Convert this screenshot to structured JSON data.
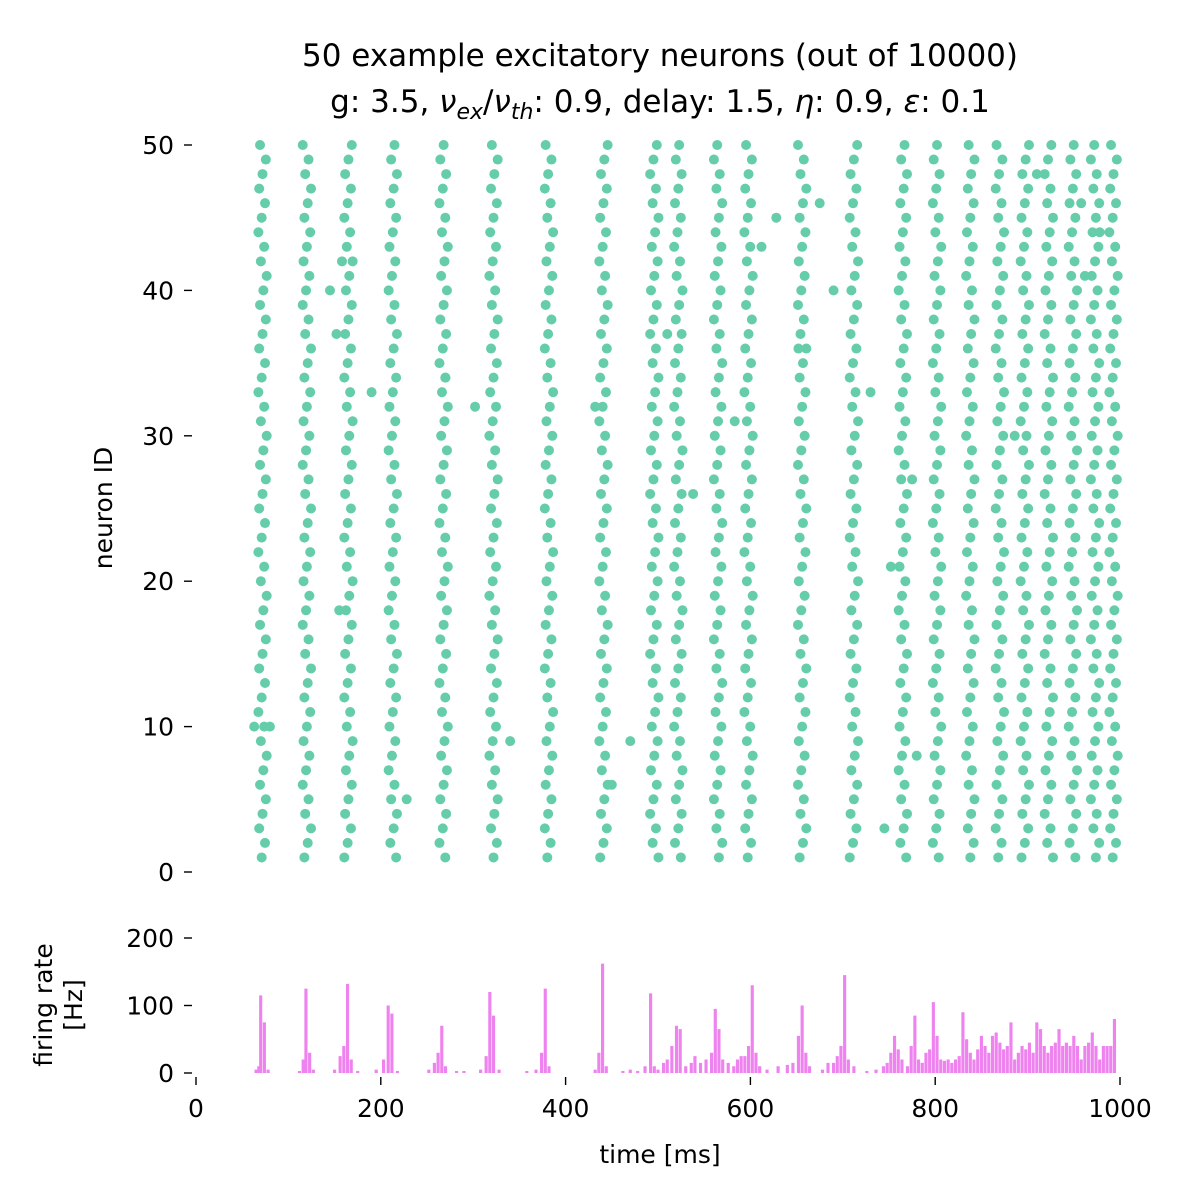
{
  "title": {
    "line1": "50 example excitatory neurons (out of 10000)",
    "line2_parts": [
      "g: 3.5, ",
      "ν",
      "ex",
      "/",
      "ν",
      "th",
      ": 0.9, delay: 1.5, ",
      "η",
      ": 0.9, ",
      "ε",
      ": 0.1"
    ]
  },
  "colors": {
    "raster": "#66cdaa",
    "histogram": "#ee82ee",
    "axis": "#000000"
  },
  "chart_data": [
    {
      "type": "scatter",
      "name": "raster",
      "xlabel": "",
      "ylabel": "neuron ID",
      "xlim": [
        0,
        1000
      ],
      "ylim": [
        0,
        50
      ],
      "yticks": [
        0,
        10,
        20,
        30,
        40,
        50
      ],
      "grid": false,
      "columns": [
        {
          "x": 72,
          "ids": "1-50"
        },
        {
          "x": 120,
          "ids": "1-50"
        },
        {
          "x": 165,
          "ids": "1-50"
        },
        {
          "x": 213,
          "ids": "1-50"
        },
        {
          "x": 268,
          "ids": "1-50"
        },
        {
          "x": 322,
          "ids": "1-50"
        },
        {
          "x": 382,
          "ids": "1-50"
        },
        {
          "x": 441,
          "ids": "1-50"
        },
        {
          "x": 496,
          "ids": "1-50"
        },
        {
          "x": 522,
          "ids": "1-50"
        },
        {
          "x": 565,
          "ids": "1-50"
        },
        {
          "x": 598,
          "ids": "1-50"
        },
        {
          "x": 656,
          "ids": "1-50"
        },
        {
          "x": 712,
          "ids": "1-50"
        },
        {
          "x": 765,
          "ids": "1-50"
        },
        {
          "x": 802,
          "ids": "1-50"
        },
        {
          "x": 838,
          "ids": "1-50"
        },
        {
          "x": 870,
          "ids": "1-50"
        },
        {
          "x": 897,
          "ids": "1-50"
        },
        {
          "x": 923,
          "ids": "1-50"
        },
        {
          "x": 949,
          "ids": "1-50"
        },
        {
          "x": 973,
          "ids": "1-50"
        },
        {
          "x": 993,
          "ids": "1-50"
        }
      ],
      "extra_points": [
        [
          63,
          10
        ],
        [
          80,
          10
        ],
        [
          158,
          42
        ],
        [
          145,
          40
        ],
        [
          152,
          37
        ],
        [
          155,
          18
        ],
        [
          190,
          33
        ],
        [
          228,
          5
        ],
        [
          270,
          34
        ],
        [
          302,
          32
        ],
        [
          340,
          9
        ],
        [
          432,
          32
        ],
        [
          450,
          6
        ],
        [
          470,
          9
        ],
        [
          510,
          37
        ],
        [
          538,
          26
        ],
        [
          583,
          31
        ],
        [
          612,
          43
        ],
        [
          628,
          45
        ],
        [
          652,
          36
        ],
        [
          675,
          46
        ],
        [
          690,
          40
        ],
        [
          730,
          33
        ],
        [
          752,
          21
        ],
        [
          775,
          27
        ],
        [
          780,
          8
        ],
        [
          745,
          3
        ],
        [
          886,
          30
        ],
        [
          910,
          48
        ],
        [
          958,
          46
        ],
        [
          978,
          44
        ],
        [
          962,
          41
        ]
      ]
    },
    {
      "type": "bar",
      "name": "histogram",
      "xlabel": "time [ms]",
      "ylabel_lines": [
        "firing rate",
        "[Hz]"
      ],
      "xlim": [
        0,
        1000
      ],
      "ylim": [
        0,
        200
      ],
      "xticks": [
        0,
        200,
        400,
        600,
        800,
        1000
      ],
      "yticks": [
        0,
        100,
        200
      ],
      "bin_width": 2,
      "bins": [
        [
          65,
          5
        ],
        [
          68,
          10
        ],
        [
          70,
          115
        ],
        [
          74,
          75
        ],
        [
          78,
          5
        ],
        [
          112,
          3
        ],
        [
          116,
          20
        ],
        [
          119,
          125
        ],
        [
          123,
          30
        ],
        [
          127,
          5
        ],
        [
          150,
          5
        ],
        [
          156,
          25
        ],
        [
          160,
          40
        ],
        [
          164,
          132
        ],
        [
          168,
          20
        ],
        [
          175,
          3
        ],
        [
          195,
          5
        ],
        [
          203,
          20
        ],
        [
          208,
          100
        ],
        [
          212,
          88
        ],
        [
          218,
          3
        ],
        [
          252,
          5
        ],
        [
          258,
          15
        ],
        [
          262,
          30
        ],
        [
          266,
          70
        ],
        [
          270,
          10
        ],
        [
          282,
          3
        ],
        [
          290,
          3
        ],
        [
          308,
          5
        ],
        [
          314,
          25
        ],
        [
          318,
          120
        ],
        [
          322,
          85
        ],
        [
          328,
          5
        ],
        [
          358,
          3
        ],
        [
          368,
          5
        ],
        [
          374,
          30
        ],
        [
          378,
          125
        ],
        [
          382,
          10
        ],
        [
          432,
          5
        ],
        [
          436,
          30
        ],
        [
          440,
          162
        ],
        [
          444,
          10
        ],
        [
          462,
          3
        ],
        [
          470,
          5
        ],
        [
          478,
          3
        ],
        [
          486,
          10
        ],
        [
          492,
          118
        ],
        [
          496,
          10
        ],
        [
          500,
          5
        ],
        [
          506,
          15
        ],
        [
          510,
          20
        ],
        [
          515,
          40
        ],
        [
          520,
          70
        ],
        [
          524,
          65
        ],
        [
          530,
          10
        ],
        [
          536,
          15
        ],
        [
          540,
          25
        ],
        [
          546,
          15
        ],
        [
          552,
          20
        ],
        [
          558,
          30
        ],
        [
          562,
          95
        ],
        [
          566,
          65
        ],
        [
          570,
          20
        ],
        [
          576,
          15
        ],
        [
          582,
          10
        ],
        [
          586,
          20
        ],
        [
          590,
          25
        ],
        [
          594,
          25
        ],
        [
          598,
          40
        ],
        [
          602,
          130
        ],
        [
          606,
          30
        ],
        [
          610,
          10
        ],
        [
          618,
          5
        ],
        [
          630,
          10
        ],
        [
          640,
          12
        ],
        [
          646,
          15
        ],
        [
          652,
          55
        ],
        [
          656,
          100
        ],
        [
          660,
          30
        ],
        [
          664,
          10
        ],
        [
          678,
          5
        ],
        [
          684,
          15
        ],
        [
          690,
          15
        ],
        [
          694,
          25
        ],
        [
          698,
          40
        ],
        [
          702,
          145
        ],
        [
          706,
          20
        ],
        [
          712,
          10
        ],
        [
          726,
          3
        ],
        [
          736,
          5
        ],
        [
          744,
          10
        ],
        [
          748,
          15
        ],
        [
          752,
          30
        ],
        [
          756,
          55
        ],
        [
          760,
          35
        ],
        [
          764,
          20
        ],
        [
          770,
          10
        ],
        [
          774,
          40
        ],
        [
          778,
          85
        ],
        [
          782,
          20
        ],
        [
          786,
          15
        ],
        [
          790,
          30
        ],
        [
          794,
          35
        ],
        [
          798,
          105
        ],
        [
          802,
          55
        ],
        [
          806,
          20
        ],
        [
          810,
          18
        ],
        [
          814,
          20
        ],
        [
          818,
          15
        ],
        [
          822,
          20
        ],
        [
          826,
          25
        ],
        [
          830,
          90
        ],
        [
          834,
          50
        ],
        [
          838,
          30
        ],
        [
          842,
          20
        ],
        [
          846,
          35
        ],
        [
          850,
          55
        ],
        [
          854,
          40
        ],
        [
          858,
          30
        ],
        [
          862,
          55
        ],
        [
          866,
          60
        ],
        [
          870,
          45
        ],
        [
          874,
          35
        ],
        [
          878,
          40
        ],
        [
          882,
          75
        ],
        [
          886,
          20
        ],
        [
          890,
          30
        ],
        [
          894,
          40
        ],
        [
          898,
          35
        ],
        [
          902,
          45
        ],
        [
          906,
          30
        ],
        [
          910,
          75
        ],
        [
          914,
          65
        ],
        [
          918,
          40
        ],
        [
          922,
          30
        ],
        [
          926,
          40
        ],
        [
          930,
          45
        ],
        [
          934,
          65
        ],
        [
          938,
          40
        ],
        [
          942,
          45
        ],
        [
          946,
          40
        ],
        [
          950,
          55
        ],
        [
          954,
          40
        ],
        [
          958,
          20
        ],
        [
          962,
          40
        ],
        [
          966,
          45
        ],
        [
          970,
          60
        ],
        [
          974,
          40
        ],
        [
          978,
          20
        ],
        [
          982,
          40
        ],
        [
          986,
          40
        ],
        [
          990,
          40
        ],
        [
          994,
          80
        ]
      ]
    }
  ]
}
